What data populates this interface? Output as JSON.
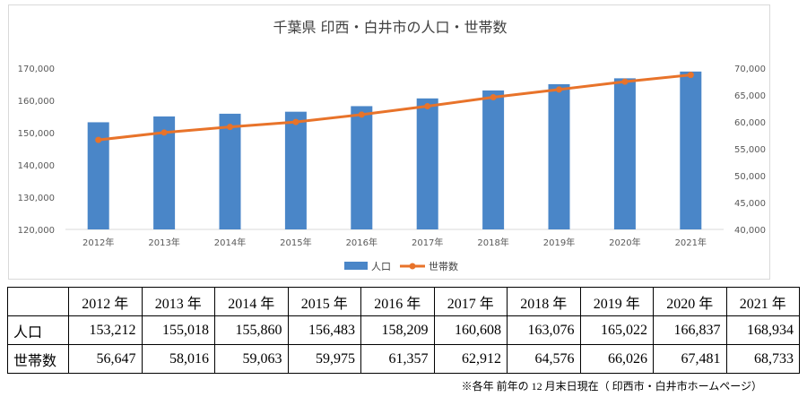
{
  "chart_data": {
    "type": "bar+line",
    "title": "千葉県 印西・白井市の人口・世帯数",
    "categories": [
      "2012年",
      "2013年",
      "2014年",
      "2015年",
      "2016年",
      "2017年",
      "2018年",
      "2019年",
      "2020年",
      "2021年"
    ],
    "series": [
      {
        "name": "人口",
        "type": "bar",
        "axis": "left",
        "color": "#4a86c8",
        "values": [
          153212,
          155018,
          155860,
          156483,
          158209,
          160608,
          163076,
          165022,
          166837,
          168934
        ]
      },
      {
        "name": "世帯数",
        "type": "line",
        "axis": "right",
        "color": "#e8732a",
        "values": [
          56647,
          58016,
          59063,
          59975,
          61357,
          62912,
          64576,
          66026,
          67481,
          68733
        ]
      }
    ],
    "y_left": {
      "min": 120000,
      "max": 170000,
      "ticks": [
        "120,000",
        "130,000",
        "140,000",
        "150,000",
        "160,000",
        "170,000"
      ]
    },
    "y_right": {
      "min": 40000,
      "max": 70000,
      "ticks": [
        "40,000",
        "45,000",
        "50,000",
        "55,000",
        "60,000",
        "65,000",
        "70,000"
      ]
    },
    "legend_position": "bottom",
    "grid": false
  },
  "table": {
    "header": [
      "2012 年",
      "2013 年",
      "2014 年",
      "2015 年",
      "2016 年",
      "2017 年",
      "2018 年",
      "2019 年",
      "2020 年",
      "2021 年"
    ],
    "rows": [
      {
        "label": "人口",
        "values": [
          "153,212",
          "155,018",
          "155,860",
          "156,483",
          "158,209",
          "160,608",
          "163,076",
          "165,022",
          "166,837",
          "168,934"
        ]
      },
      {
        "label": "世帯数",
        "values": [
          "56,647",
          "58,016",
          "59,063",
          "59,975",
          "61,357",
          "62,912",
          "64,576",
          "66,026",
          "67,481",
          "68,733"
        ]
      }
    ]
  },
  "footnote": "※各年 前年の 12 月末日現在（ 印西市・白井市ホームページ）"
}
